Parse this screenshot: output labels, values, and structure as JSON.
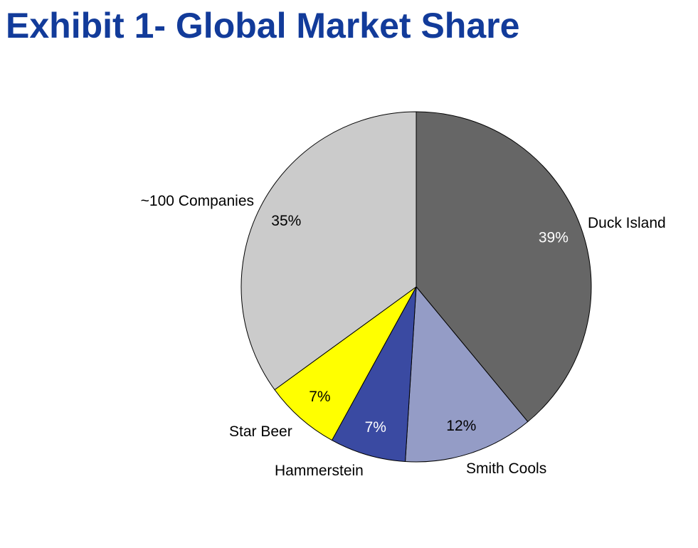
{
  "header": {
    "title": "Exhibit 1- Global Market Share",
    "title_color": "#123b9a"
  },
  "chart_data": {
    "type": "pie",
    "title": "Exhibit 1- Global Market Share",
    "start_angle_deg": 0,
    "direction": "clockwise",
    "unit": "%",
    "slices": [
      {
        "name": "Duck Island",
        "value": 39,
        "pct_label": "39%",
        "color": "#666666",
        "pct_color": "#ffffff"
      },
      {
        "name": "Smith Cools",
        "value": 12,
        "pct_label": "12%",
        "color": "#949cc6",
        "pct_color": "#000000"
      },
      {
        "name": "Hammerstein",
        "value": 7,
        "pct_label": "7%",
        "color": "#3a4aa2",
        "pct_color": "#ffffff"
      },
      {
        "name": "Star Beer",
        "value": 7,
        "pct_label": "7%",
        "color": "#ffff00",
        "pct_color": "#000000"
      },
      {
        "name": "~100 Companies",
        "value": 35,
        "pct_label": "35%",
        "color": "#cbcbcb",
        "pct_color": "#000000"
      }
    ]
  }
}
